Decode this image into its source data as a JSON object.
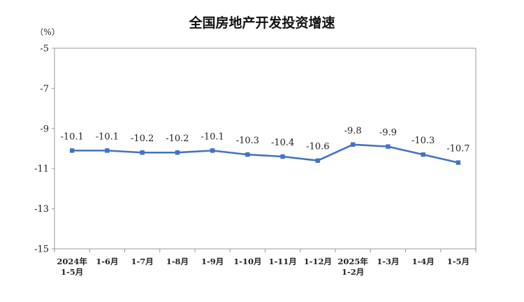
{
  "chart_data": {
    "type": "line",
    "title": "全国房地产开发投资增速",
    "unit": "（%）",
    "xlabel": "",
    "ylabel": "",
    "ylim": [
      -15,
      -5
    ],
    "yticks": [
      "-5",
      "-7",
      "-9",
      "-11",
      "-13",
      "-15"
    ],
    "ytick_values": [
      -5,
      -7,
      -9,
      -11,
      -13,
      -15
    ],
    "grid": false,
    "legend": "none",
    "categories": [
      [
        "2024年",
        "1-5月"
      ],
      [
        "1-6月"
      ],
      [
        "1-7月"
      ],
      [
        "1-8月"
      ],
      [
        "1-9月"
      ],
      [
        "1-10月"
      ],
      [
        "1-11月"
      ],
      [
        "1-12月"
      ],
      [
        "2025年",
        "1-2月"
      ],
      [
        "1-3月"
      ],
      [
        "1-4月"
      ],
      [
        "1-5月"
      ]
    ],
    "series": [
      {
        "values": [
          -10.1,
          -10.1,
          -10.2,
          -10.2,
          -10.1,
          -10.3,
          -10.4,
          -10.6,
          -9.8,
          -9.9,
          -10.3,
          -10.7
        ],
        "labels": [
          "-10.1",
          "-10.1",
          "-10.2",
          "-10.2",
          "-10.1",
          "-10.3",
          "-10.4",
          "-10.6",
          "-9.8",
          "-9.9",
          "-10.3",
          "-10.7"
        ],
        "color": "#4472C4"
      }
    ],
    "axis_color": "#999999"
  }
}
